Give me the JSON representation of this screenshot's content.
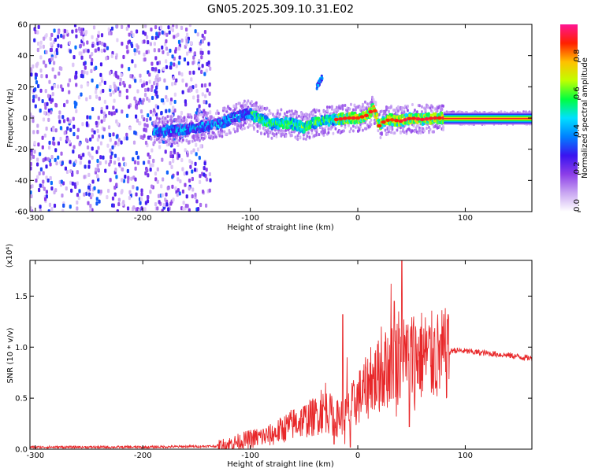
{
  "title": "GN05.2025.309.10.31.E02",
  "chart_data": [
    {
      "type": "heatmap",
      "xlabel": "Height of straight line (km)",
      "ylabel": "Frequency (Hz)",
      "xlim": [
        -305,
        162
      ],
      "ylim": [
        -60,
        60
      ],
      "xticks": [
        -300,
        -200,
        -100,
        0,
        100
      ],
      "xtick_labels": [
        "-300",
        "-200",
        "-100",
        "0",
        "100"
      ],
      "yticks": [
        -60,
        -40,
        -20,
        0,
        20,
        40,
        60
      ],
      "ytick_labels": [
        "-60",
        "-40",
        "-20",
        "0",
        "20",
        "40",
        "60"
      ],
      "colorbar": {
        "label": "Normalized spectral amplitude",
        "range": [
          0,
          1
        ],
        "ticks": [
          0,
          0.2,
          0.4,
          0.6,
          0.8
        ],
        "tick_labels": [
          "0.0",
          "0.2",
          "0.4",
          "0.6",
          "0.8"
        ],
        "colors": [
          "#ffffff",
          "#c9a6f2",
          "#8c3ee8",
          "#3a14f0",
          "#0080ff",
          "#00e0ff",
          "#00ff40",
          "#c0ff00",
          "#ffc000",
          "#ff2000",
          "#ff1493"
        ]
      },
      "noise_region_x": [
        -305,
        -137
      ],
      "ridge": {
        "x": [
          -190,
          -170,
          -150,
          -130,
          -115,
          -100,
          -90,
          -80,
          -70,
          -60,
          -50,
          -40,
          -30,
          -20,
          -10,
          0,
          5,
          10,
          15,
          20,
          25,
          30,
          40,
          50,
          60,
          70,
          80,
          90,
          100,
          120,
          162
        ],
        "y": [
          -8,
          -8,
          -6,
          -4,
          0,
          3,
          -1,
          -4,
          -3,
          -4,
          -6,
          -3,
          -2,
          -1,
          0,
          0,
          1,
          2,
          7,
          -5,
          -2,
          -1,
          -2,
          0,
          -1,
          0,
          0,
          0,
          0,
          0,
          0
        ]
      },
      "branch": {
        "x": [
          -38,
          -33
        ],
        "y": [
          20,
          26
        ]
      }
    },
    {
      "type": "line",
      "xlabel": "Height of straight line (km)",
      "ylabel": "SNR (10 * v/v)",
      "scale_label": "(x10⁴)",
      "xlim": [
        -305,
        162
      ],
      "ylim": [
        0,
        1.85
      ],
      "xticks": [
        -300,
        -200,
        -100,
        0,
        100
      ],
      "xtick_labels": [
        "-300",
        "-200",
        "-100",
        "0",
        "100"
      ],
      "yticks": [
        0,
        0.5,
        1.0,
        1.5
      ],
      "ytick_labels": [
        "0.0",
        "0.5",
        "1.0",
        "1.5"
      ],
      "color": "#e8282a",
      "envelope": {
        "x": [
          -305,
          -200,
          -130,
          -120,
          -100,
          -80,
          -60,
          -40,
          -30,
          -20,
          -10,
          0,
          10,
          20,
          30,
          40,
          50,
          60,
          70,
          80,
          84,
          88,
          100,
          120,
          140,
          162
        ],
        "y": [
          0.02,
          0.02,
          0.03,
          0.05,
          0.1,
          0.14,
          0.25,
          0.32,
          0.38,
          0.3,
          0.35,
          0.5,
          0.62,
          0.72,
          0.82,
          0.88,
          0.9,
          0.92,
          0.9,
          0.92,
          0.93,
          0.97,
          0.96,
          0.94,
          0.92,
          0.89
        ]
      },
      "spikes": [
        {
          "x": -34,
          "y": 0.58
        },
        {
          "x": -30,
          "y": 0.65
        },
        {
          "x": -26,
          "y": 0.48
        },
        {
          "x": -14,
          "y": 1.32
        },
        {
          "x": -10,
          "y": 0.9
        },
        {
          "x": 12,
          "y": 1.0
        },
        {
          "x": 22,
          "y": 1.2
        },
        {
          "x": 26,
          "y": 1.1
        },
        {
          "x": 31,
          "y": 1.62
        },
        {
          "x": 34,
          "y": 1.45
        },
        {
          "x": 38,
          "y": 1.35
        },
        {
          "x": 41,
          "y": 1.85
        },
        {
          "x": 45,
          "y": 1.22
        },
        {
          "x": 52,
          "y": 1.3
        },
        {
          "x": 58,
          "y": 1.18
        },
        {
          "x": 64,
          "y": 1.12
        },
        {
          "x": 71,
          "y": 1.15
        },
        {
          "x": 77,
          "y": 1.12
        },
        {
          "x": 84,
          "y": 1.32
        }
      ],
      "dips": [
        {
          "x": -22,
          "y": 0.05
        },
        {
          "x": -12,
          "y": 0.05
        },
        {
          "x": -7,
          "y": 0.02
        },
        {
          "x": 36,
          "y": 0.32
        },
        {
          "x": 48,
          "y": 0.22
        },
        {
          "x": 53,
          "y": 0.38
        }
      ]
    }
  ]
}
